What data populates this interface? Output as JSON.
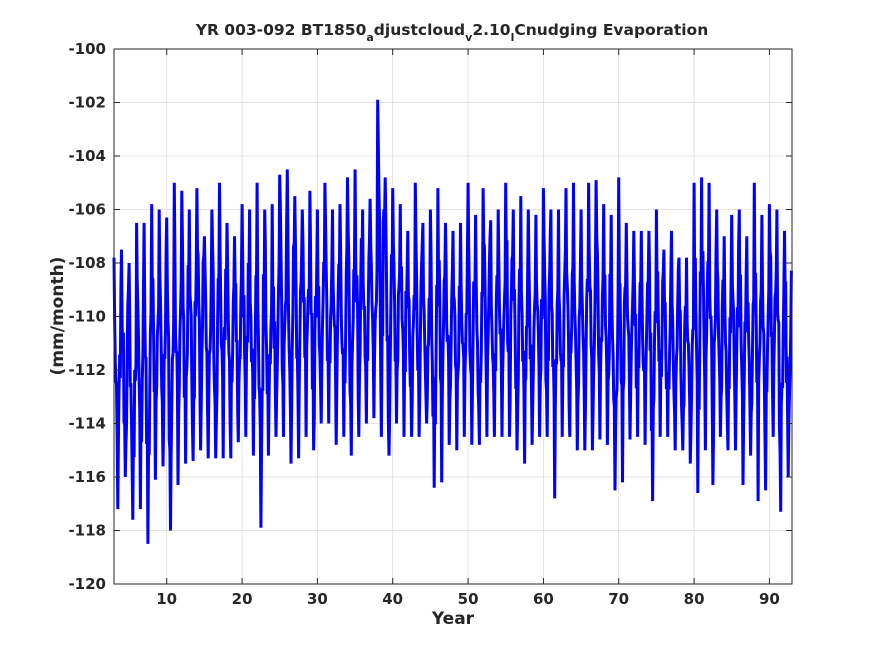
{
  "chart_data": {
    "type": "line",
    "title": {
      "prefix": "YR 003-092 BT1850",
      "sub1": "a",
      "mid1": "djustcloud",
      "sub2": "v",
      "mid2": "2.10",
      "sub3": "l",
      "suffix": "Cnudging Evaporation"
    },
    "xlabel": "Year",
    "ylabel": "(mm/month)",
    "xlim": [
      3,
      93
    ],
    "ylim": [
      -120,
      -100
    ],
    "xticks": [
      10,
      20,
      30,
      40,
      50,
      60,
      70,
      80,
      90
    ],
    "yticks": [
      -120,
      -118,
      -116,
      -114,
      -112,
      -110,
      -108,
      -106,
      -104,
      -102,
      -100
    ],
    "grid": true,
    "series": [
      {
        "color": "#0000ff",
        "line_width": 3,
        "annual_minima": [
          -117.2,
          -116.0,
          -117.6,
          -117.2,
          -118.5,
          -116.1,
          -115.6,
          -118.0,
          -116.3,
          -115.5,
          -115.4,
          -115.0,
          -115.3,
          -115.3,
          -115.3,
          -115.3,
          -114.7,
          -114.5,
          -115.2,
          -117.9,
          -115.2,
          -114.5,
          -114.5,
          -115.5,
          -115.3,
          -114.5,
          -115.0,
          -114.0,
          -114.0,
          -114.8,
          -114.5,
          -115.2,
          -114.5,
          -114.0,
          -113.8,
          -114.5,
          -115.2,
          -114.0,
          -114.5,
          -114.5,
          -114.5,
          -114.0,
          -116.4,
          -116.2,
          -114.8,
          -115.0,
          -114.5,
          -114.8,
          -114.8,
          -114.5,
          -114.5,
          -114.5,
          -114.5,
          -115.0,
          -115.5,
          -114.8,
          -114.5,
          -114.5,
          -116.8,
          -114.5,
          -114.5,
          -115.0,
          -115.0,
          -115.0,
          -114.6,
          -114.8,
          -116.5,
          -116.2,
          -114.6,
          -114.5,
          -114.8,
          -116.9,
          -114.5,
          -114.5,
          -115.0,
          -115.0,
          -115.5,
          -116.6,
          -115.0,
          -116.3,
          -114.5,
          -115.0,
          -115.0,
          -116.3,
          -115.2,
          -116.9,
          -116.5,
          -114.5,
          -117.3,
          -116.0
        ],
        "annual_maxima": [
          -107.8,
          -107.5,
          -108.0,
          -106.5,
          -106.5,
          -105.8,
          -106.0,
          -106.3,
          -105.0,
          -105.3,
          -106.0,
          -105.2,
          -107.0,
          -106.0,
          -105.0,
          -106.5,
          -107.0,
          -105.8,
          -106.0,
          -105.0,
          -106.0,
          -105.8,
          -104.7,
          -104.5,
          -105.5,
          -106.0,
          -105.3,
          -106.0,
          -105.0,
          -106.0,
          -105.8,
          -104.8,
          -104.5,
          -106.0,
          -105.6,
          -101.9,
          -104.8,
          -105.2,
          -105.8,
          -106.8,
          -105.0,
          -106.5,
          -106.0,
          -105.2,
          -106.5,
          -106.8,
          -106.5,
          -105.0,
          -106.2,
          -105.2,
          -106.4,
          -106.0,
          -105.0,
          -106.0,
          -105.5,
          -106.0,
          -106.2,
          -105.2,
          -106.0,
          -106.0,
          -105.2,
          -105.0,
          -106.0,
          -105.0,
          -104.9,
          -105.8,
          -106.2,
          -104.8,
          -106.5,
          -106.8,
          -106.8,
          -106.8,
          -106.0,
          -107.5,
          -106.8,
          -107.8,
          -107.8,
          -105.0,
          -104.8,
          -105.0,
          -106.0,
          -107.0,
          -106.2,
          -106.0,
          -107.0,
          -105.0,
          -106.2,
          -105.8,
          -106.0,
          -106.8
        ]
      }
    ]
  }
}
